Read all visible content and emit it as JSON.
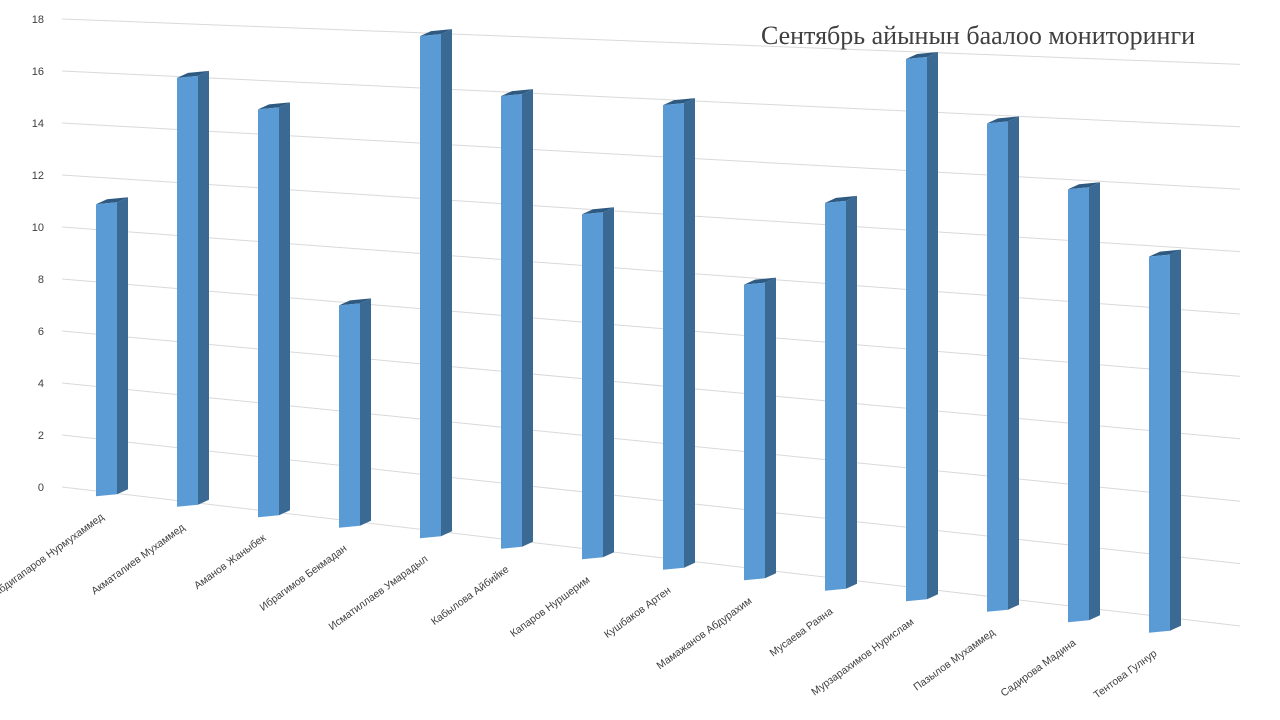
{
  "chart_data": {
    "type": "bar",
    "title": "Сентябрь айынын баалоо мониторинги",
    "xlabel": "",
    "ylabel": "",
    "ylim": [
      0,
      18
    ],
    "yticks": [
      0,
      2,
      4,
      6,
      8,
      10,
      12,
      14,
      16,
      18
    ],
    "grid": true,
    "legend": "none",
    "bar_style": "3d-column",
    "colors": {
      "bar_front": "#5B9BD5",
      "bar_side": "#3A6A94",
      "bar_top": "#2E5A82",
      "grid": "#D9D9D9",
      "text": "#404040"
    },
    "categories": [
      "Абдигапаров Нурмухаммед",
      "Акматалиев Мухаммед",
      "Аманов Жаныбек",
      "Ибрагимов Бекмадан",
      "Исматиллаев Умарадыл",
      "Кабылова Айбийке",
      "Капаров Нуршерим",
      "Кушбаков Артен",
      "Мамажанов Абдурахим",
      "Мусаева Раяна",
      "Мурзарахимов Нурислам",
      "Пазылов Мухаммед",
      "Садирова Мадина",
      "Тентова Гулнур"
    ],
    "values": [
      11,
      16,
      15,
      8,
      18,
      16,
      12,
      16,
      10,
      13,
      18,
      16,
      14,
      12
    ]
  }
}
